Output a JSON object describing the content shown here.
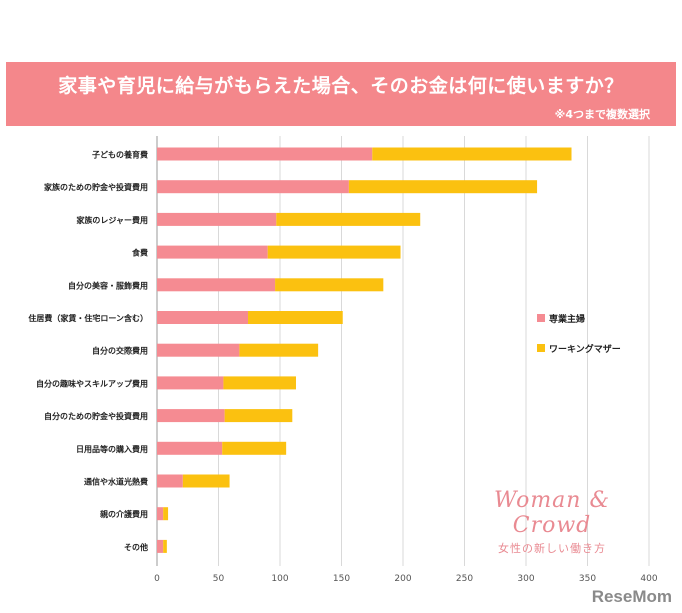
{
  "banner": {
    "title": "家事や育児に給与がもらえた場合、そのお金は何に使いますか？",
    "note": "※4つまで複数選択"
  },
  "brand": {
    "name": "Woman & Crowd",
    "tagline": "女性の新しい働き方"
  },
  "watermark": "ReseMom",
  "colors": {
    "banner": "#f4878b",
    "housewife": "#f58b92",
    "working_mother": "#fbc110",
    "grid": "#d9d9d9"
  },
  "chart_data": {
    "type": "bar",
    "orientation": "horizontal",
    "stacked": true,
    "categories": [
      "子どもの養育費",
      "家族のための貯金や投資費用",
      "家族のレジャー費用",
      "食費",
      "自分の美容・服飾費用",
      "住居費（家賃・住宅ローン含む）",
      "自分の交際費用",
      "自分の趣味やスキルアップ費用",
      "自分のための貯金や投資費用",
      "日用品等の購入費用",
      "通信や水道光熱費",
      "親の介護費用",
      "その他"
    ],
    "series": [
      {
        "name": "専業主婦",
        "color": "#f58b92",
        "values": [
          175,
          156,
          97,
          90,
          96,
          74,
          67,
          54,
          55,
          53,
          21,
          5,
          5
        ]
      },
      {
        "name": "ワーキングマザー",
        "color": "#fbc110",
        "values": [
          162,
          153,
          117,
          108,
          88,
          77,
          64,
          59,
          55,
          52,
          38,
          4,
          3
        ]
      }
    ],
    "xlim": [
      0,
      400
    ],
    "xticks": [
      "0",
      "50",
      "100",
      "150",
      "200",
      "250",
      "300",
      "350",
      "400"
    ],
    "grid": true,
    "legend_position": "right"
  }
}
